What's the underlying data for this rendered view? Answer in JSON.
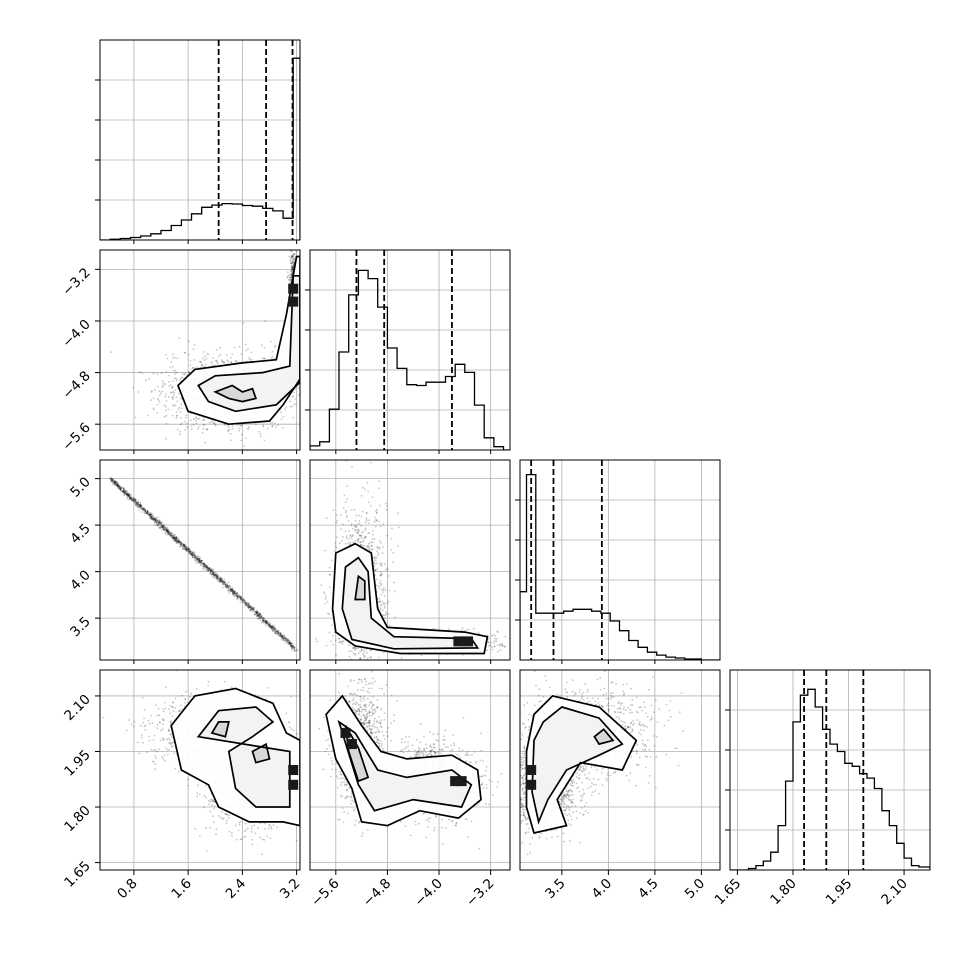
{
  "chart_data": {
    "type": "corner",
    "grid": true,
    "params": [
      {
        "id": "p1",
        "range": [
          0.3,
          3.25
        ],
        "ticks": [
          0.8,
          1.6,
          2.4,
          3.2
        ],
        "tick_labels": [
          "0.8",
          "1.6",
          "2.4",
          "3.2"
        ],
        "quantiles": [
          2.05,
          2.75,
          3.14
        ],
        "hist": {
          "edges": [
            0.3,
            0.45,
            0.6,
            0.75,
            0.9,
            1.05,
            1.2,
            1.35,
            1.5,
            1.65,
            1.8,
            1.95,
            2.1,
            2.25,
            2.4,
            2.55,
            2.7,
            2.85,
            3.0,
            3.15,
            3.25
          ],
          "counts": [
            0,
            0.02,
            0.04,
            0.07,
            0.11,
            0.17,
            0.26,
            0.4,
            0.55,
            0.72,
            0.9,
            0.96,
            1.0,
            0.99,
            0.95,
            0.93,
            0.87,
            0.8,
            0.6,
            5.0
          ],
          "ymax": 5.5
        }
      },
      {
        "id": "p2",
        "range": [
          -6.0,
          -2.9
        ],
        "ticks": [
          -5.6,
          -4.8,
          -4.0,
          -3.2
        ],
        "tick_labels": [
          "−5.6",
          "−4.8",
          "−4.0",
          "−3.2"
        ],
        "quantiles": [
          -5.28,
          -4.85,
          -3.8
        ],
        "hist": {
          "edges": [
            -6.0,
            -5.85,
            -5.7,
            -5.55,
            -5.4,
            -5.25,
            -5.1,
            -4.95,
            -4.8,
            -4.65,
            -4.5,
            -4.35,
            -4.2,
            -4.05,
            -3.9,
            -3.75,
            -3.6,
            -3.45,
            -3.3,
            -3.15,
            -3.0,
            -2.9
          ],
          "counts": [
            0.05,
            0.1,
            0.5,
            1.2,
            1.9,
            2.2,
            2.1,
            1.75,
            1.25,
            1.0,
            0.8,
            0.79,
            0.83,
            0.83,
            0.9,
            1.05,
            0.95,
            0.55,
            0.15,
            0.04,
            0.0
          ],
          "ymax": 2.45
        }
      },
      {
        "id": "p3",
        "range": [
          3.05,
          5.2
        ],
        "ticks": [
          3.5,
          4.0,
          4.5,
          5.0
        ],
        "tick_labels": [
          "3.5",
          "4.0",
          "4.5",
          "5.0"
        ],
        "quantiles": [
          3.17,
          3.41,
          3.93
        ],
        "hist": {
          "edges": [
            3.05,
            3.12,
            3.22,
            3.32,
            3.42,
            3.52,
            3.62,
            3.72,
            3.82,
            3.92,
            4.02,
            4.12,
            4.22,
            4.32,
            4.42,
            4.52,
            4.62,
            4.72,
            4.82,
            5.0,
            5.2
          ],
          "counts": [
            0.7,
            1.9,
            0.48,
            0.48,
            0.48,
            0.5,
            0.52,
            0.52,
            0.5,
            0.48,
            0.4,
            0.3,
            0.2,
            0.13,
            0.08,
            0.05,
            0.03,
            0.02,
            0.01,
            0.0
          ],
          "ymax": 2.05
        }
      },
      {
        "id": "p4",
        "range": [
          1.63,
          2.17
        ],
        "ticks": [
          1.65,
          1.8,
          1.95,
          2.1
        ],
        "tick_labels": [
          "1.65",
          "1.80",
          "1.95",
          "2.10"
        ],
        "quantiles": [
          1.83,
          1.89,
          1.99
        ],
        "hist": {
          "edges": [
            1.63,
            1.66,
            1.68,
            1.7,
            1.72,
            1.74,
            1.76,
            1.78,
            1.8,
            1.82,
            1.84,
            1.86,
            1.88,
            1.9,
            1.92,
            1.94,
            1.96,
            1.98,
            2.0,
            2.02,
            2.04,
            2.06,
            2.08,
            2.1,
            2.12,
            2.14,
            2.17
          ],
          "counts": [
            0.0,
            0.0,
            0.01,
            0.03,
            0.06,
            0.12,
            0.3,
            0.6,
            1.0,
            1.18,
            1.22,
            1.1,
            0.95,
            0.85,
            0.8,
            0.72,
            0.7,
            0.65,
            0.62,
            0.55,
            0.4,
            0.3,
            0.18,
            0.08,
            0.03,
            0.02
          ],
          "ymax": 1.35
        }
      }
    ]
  }
}
